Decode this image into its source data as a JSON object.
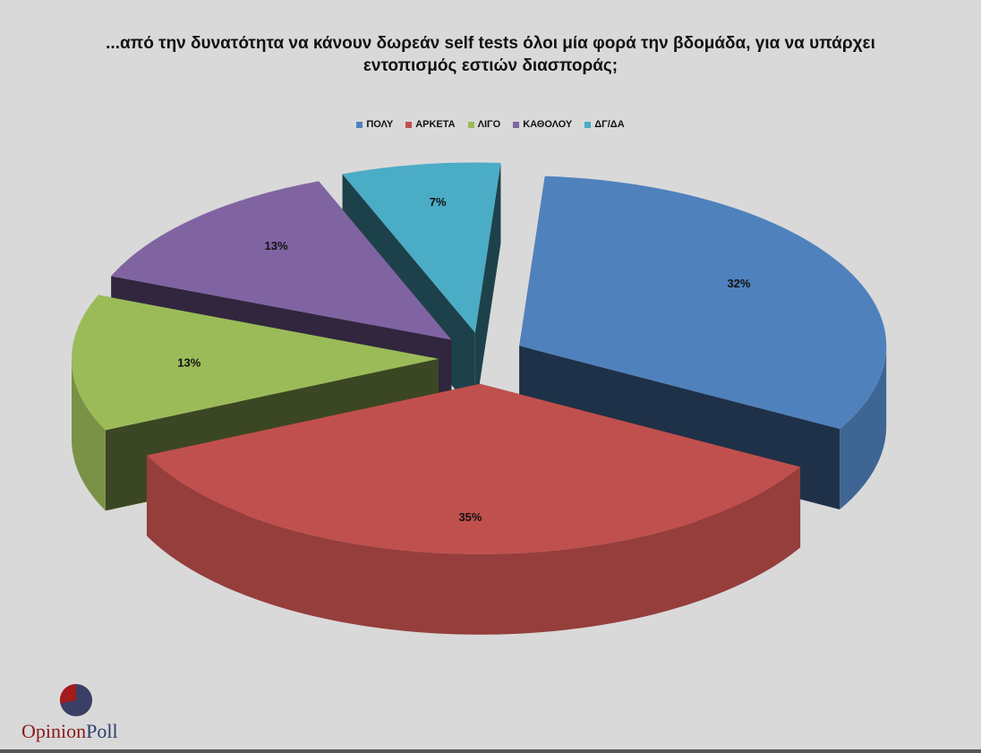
{
  "title_line1": "...από την δυνατότητα να κάνουν δωρεάν self tests όλοι μία φορά την βδομάδα, για να υπάρχει",
  "title_line2": "εντοπισμός εστιών διασποράς;",
  "colors": {
    "ΠΟΛΥ": "#4f81bd",
    "ΑΡΚΕΤΑ": "#c0504d",
    "ΛΙΓΟ": "#9bbb59",
    "ΚΑΘΟΛΟΥ": "#8064a2",
    "ΔΓ/ΔΑ": "#4bacc6"
  },
  "chart_data": {
    "type": "pie",
    "categories": [
      "ΠΟΛΥ",
      "ΑΡΚΕΤΑ",
      "ΛΙΓΟ",
      "ΚΑΘΟΛΟΥ",
      "ΔΓ/ΔΑ"
    ],
    "values": [
      32,
      35,
      13,
      13,
      7
    ],
    "labels": [
      "32%",
      "35%",
      "13%",
      "13%",
      "7%"
    ],
    "legend_position": "top",
    "exploded": true,
    "three_d": true
  },
  "logo": {
    "opinion": "Opinion",
    "poll": "Poll"
  }
}
